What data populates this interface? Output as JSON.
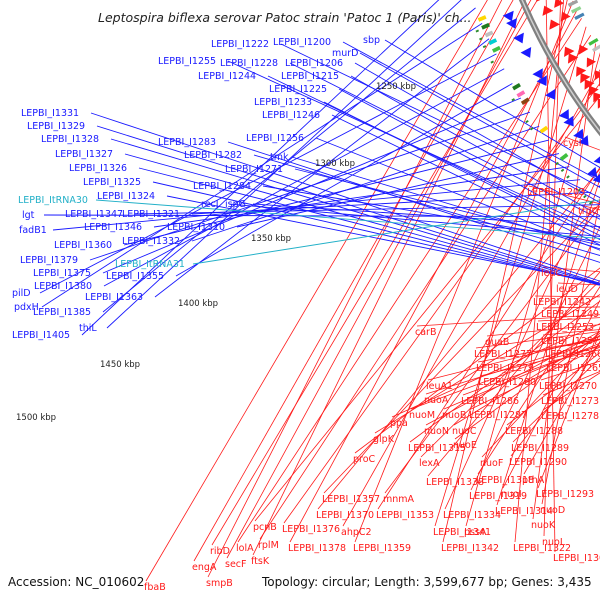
{
  "title": "Leptospira biflexa serovar Patoc strain 'Patoc 1 (Paris)' ch...",
  "footer": {
    "accession": "Accession: NC_010602",
    "topology": "Topology: circular; Length: 3,599,677 bp; Genes: 3,435"
  },
  "colors": {
    "minus_strand": "#1a1aff",
    "plus_strand": "#ff1a1a",
    "trna": "#22b0c8",
    "backbone": "#808080"
  },
  "ticks": [
    "1250 kbp",
    "1300 kbp",
    "1350 kbp",
    "1400 kbp",
    "1450 kbp",
    "1500 kbp"
  ],
  "blue_labels": [
    "LEPBI_I1222",
    "LEPBI_I1200",
    "sbp",
    "murD",
    "LEPBI_I1255",
    "LEPBI_I1228",
    "LEPBI_I1206",
    "LEPBI_I1244",
    "LEPBI_I1215",
    "LEPBI_I1225",
    "LEPBI_I1233",
    "LEPBI_I1246",
    "LEPBI_I1331",
    "LEPBI_I1329",
    "LEPBI_I1328",
    "LEPBI_I1327",
    "LEPBI_I1326",
    "LEPBI_I1325",
    "LEPBI_I1324",
    "LEPBI_I1283",
    "LEPBI_I1256",
    "LEPBI_I1282",
    "tmk",
    "LEPBI_I1271",
    "LEPBI_I1284",
    "recJ",
    "ispG",
    "lgt",
    "LEPBI_I1347",
    "LEPBI_I1321",
    "fadB1",
    "LEPBI_I1346",
    "LEPBI_I1310",
    "LEPBI_I1360",
    "LEPBI_I1332",
    "LEPBI_I1379",
    "LEPBI_I1375",
    "LEPBI_I1355",
    "LEPBI_I1380",
    "pilD",
    "LEPBI_I1363",
    "pdxH",
    "LEPBI_I1385",
    "thiL",
    "LEPBI_I1405"
  ],
  "cyan_labels": [
    "LEPBI_ItRNA30",
    "LEPBI_ItRNA31"
  ],
  "red_labels": [
    "cysI",
    "LEPBI_I1203",
    "trpC",
    "leuC1",
    "leuD",
    "LEPBI_I1242",
    "LEPBI_I1249",
    "LEPBI_I1253",
    "LEPBI_I1257",
    "carB",
    "guaB",
    "LEPBI_I1277",
    "LEPBI_I1260",
    "LEPBI_I1279",
    "LEPBI_I1265",
    "LEPBI_I1280",
    "LEPBI_I1270",
    "leuA1",
    "LEPBI_I1273",
    "nuoA",
    "LEPBI_I1286",
    "nuoM",
    "nuoB",
    "LEPBI_I1287",
    "LEPBI_I1278",
    "ppa",
    "nuoN",
    "nuoC",
    "LEPBI_I1288",
    "nuoE",
    "LEPBI_I1289",
    "glpK",
    "LEPBI_I1315",
    "nuoF",
    "LEPBI_I1290",
    "proC",
    "lexA",
    "pthA",
    "LEPBI_I1338",
    "LEPBI_I1318",
    "nuoI",
    "LEPBI_I1293",
    "LEPBI_I1357",
    "mnmA",
    "LEPBI_I1319",
    "LEPBI_I1370",
    "LEPBI_I1353",
    "LEPBI_I1334",
    "LEPBI_I1314",
    "nuoD",
    "pcnB",
    "LEPBI_I1376",
    "ahpC2",
    "pssA",
    "nuoK",
    "rplM",
    "LEPBI_I1341",
    "lolA",
    "LEPBI_I1378",
    "LEPBI_I1359",
    "LEPBI_I1342",
    "LEPBI_I1322",
    "nuoL",
    "ribD",
    "secF",
    "ftsK",
    "engA",
    "LEPBI_I1308",
    "smpB",
    "fbaB"
  ]
}
